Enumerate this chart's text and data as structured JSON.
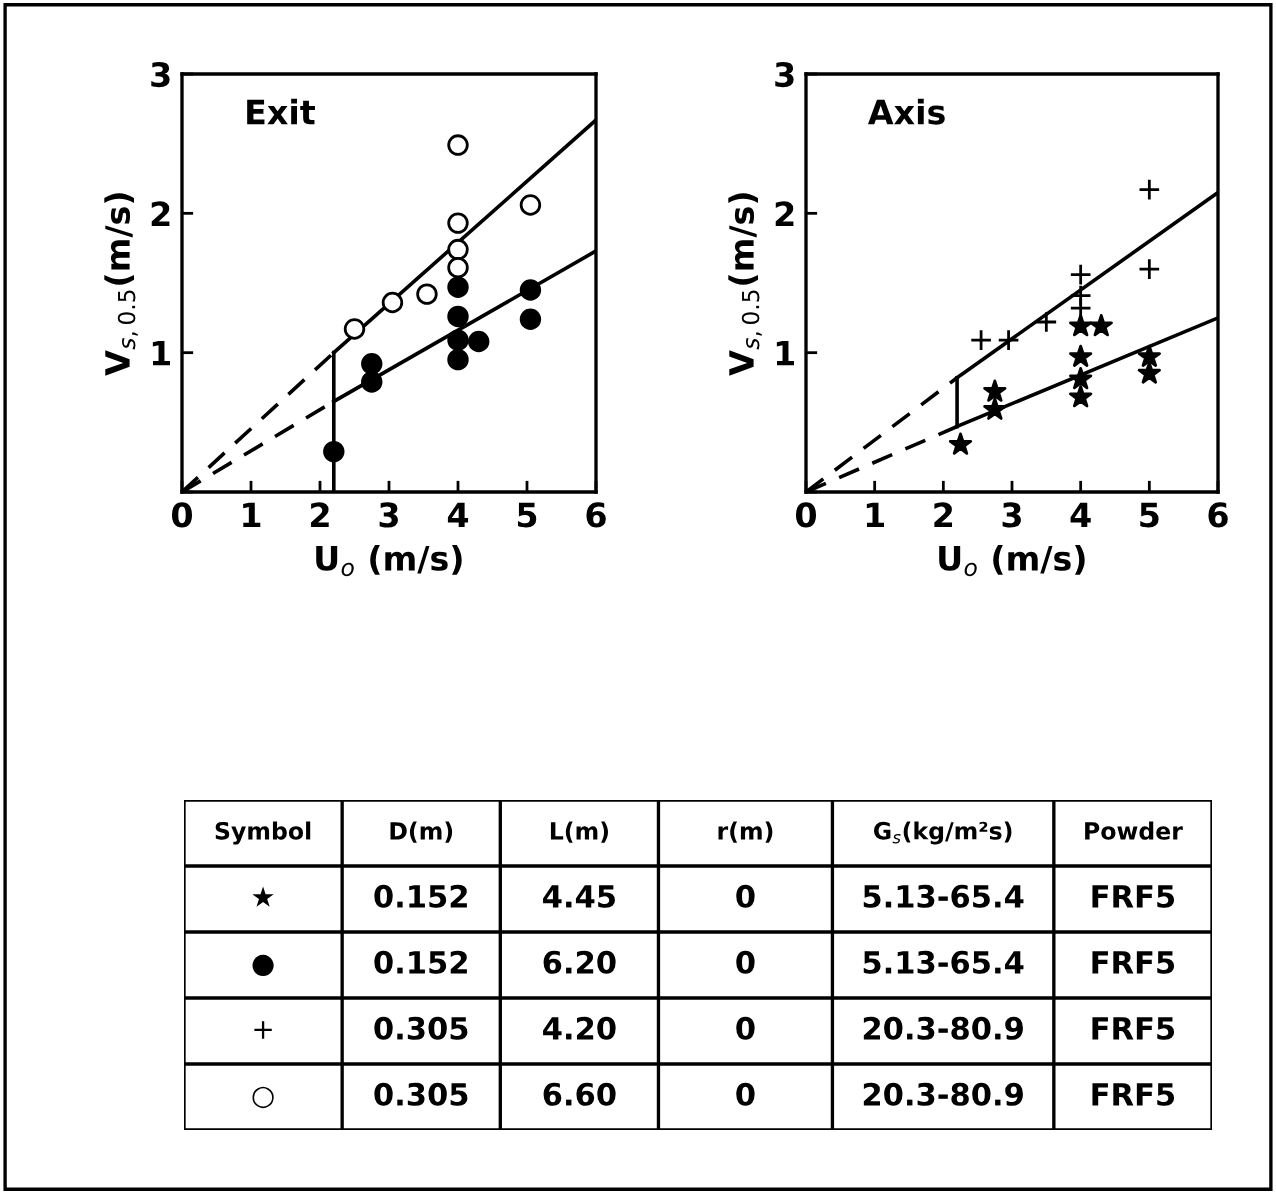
{
  "chart_data": [
    {
      "type": "scatter",
      "title": "Exit",
      "xlabel": "U$_{o}$ (m/s)",
      "ylabel": "V$_{s,0.5}$(m/s)",
      "xlim": [
        0,
        6
      ],
      "ylim": [
        0,
        3
      ],
      "xticks": [
        0,
        1,
        2,
        3,
        4,
        5,
        6
      ],
      "yticks": [
        {
          "value": 0,
          "label": null
        },
        1,
        2,
        3
      ],
      "grid": false,
      "legend": false,
      "series": [
        {
          "type": "scatter",
          "marker": "circle",
          "color": "#ffffff",
          "x": [
            2.5,
            3.05,
            3.55,
            4,
            4,
            4,
            4,
            5.05
          ],
          "values": [
            1.17,
            1.36,
            1.42,
            2.49,
            1.93,
            1.74,
            1.61,
            2.06
          ]
        },
        {
          "type": "scatter",
          "marker": "circle",
          "color": "#000000",
          "x": [
            2.2,
            2.75,
            2.75,
            4,
            4,
            4,
            4,
            4.3,
            5.05,
            5.05
          ],
          "values": [
            0.29,
            0.92,
            0.79,
            1.47,
            1.26,
            1.09,
            0.95,
            1.08,
            1.45,
            1.24
          ]
        },
        {
          "type": "line",
          "line_style": "dashed",
          "color": "#000000",
          "x": [
            0,
            2.2
          ],
          "values": [
            0,
            1.0
          ]
        },
        {
          "type": "line",
          "line_style": "solid",
          "color": "#000000",
          "x": [
            2.2,
            6
          ],
          "values": [
            1.0,
            2.67
          ]
        },
        {
          "type": "line",
          "line_style": "dashed",
          "color": "#000000",
          "x": [
            0,
            2.2
          ],
          "values": [
            0,
            0.65
          ]
        },
        {
          "type": "line",
          "line_style": "solid",
          "color": "#000000",
          "x": [
            2.2,
            6
          ],
          "values": [
            0.65,
            1.73
          ]
        },
        {
          "type": "line",
          "line_style": "solid",
          "color": "#000000",
          "x": [
            2.2,
            2.2
          ],
          "values": [
            0,
            1.0
          ]
        }
      ]
    },
    {
      "type": "scatter",
      "title": "Axis",
      "xlabel": "U$_{o}$ (m/s)",
      "ylabel": "V$_{s,0.5}$(m/s)",
      "xlim": [
        0,
        6
      ],
      "ylim": [
        0,
        3
      ],
      "xticks": [
        0,
        1,
        2,
        3,
        4,
        5,
        6
      ],
      "yticks": [
        {
          "value": 0,
          "label": null
        },
        1,
        2,
        3
      ],
      "grid": false,
      "legend": false,
      "series": [
        {
          "type": "scatter",
          "marker": "cross",
          "color": "#000000",
          "x": [
            2.55,
            2.95,
            3.5,
            4,
            4,
            4,
            5,
            5
          ],
          "values": [
            1.09,
            1.09,
            1.22,
            1.56,
            1.41,
            1.32,
            2.17,
            1.6
          ]
        },
        {
          "type": "scatter",
          "marker": "star",
          "color": "#000000",
          "x": [
            2.25,
            2.75,
            2.75,
            4,
            4,
            4,
            4,
            4.3,
            5,
            5
          ],
          "values": [
            0.34,
            0.72,
            0.59,
            1.19,
            0.97,
            0.81,
            0.68,
            1.19,
            0.97,
            0.85
          ]
        },
        {
          "type": "line",
          "line_style": "dashed",
          "color": "#000000",
          "x": [
            0,
            2.2
          ],
          "values": [
            0,
            0.82
          ]
        },
        {
          "type": "line",
          "line_style": "solid",
          "color": "#000000",
          "x": [
            2.2,
            6
          ],
          "values": [
            0.82,
            2.15
          ]
        },
        {
          "type": "line",
          "line_style": "dashed",
          "color": "#000000",
          "x": [
            0,
            2.2
          ],
          "values": [
            0,
            0.47
          ]
        },
        {
          "type": "line",
          "line_style": "solid",
          "color": "#000000",
          "x": [
            2.2,
            6
          ],
          "values": [
            0.47,
            1.25
          ]
        },
        {
          "type": "line",
          "line_style": "solid",
          "color": "#000000",
          "x": [
            2.2,
            2.2
          ],
          "values": [
            0.47,
            0.82
          ]
        }
      ]
    },
    {
      "type": "other",
      "categories": [
        "Symbol",
        "D(m)",
        "L(m)",
        "r(m)",
        "G$_{s}$(kg/m²s)",
        "Powder"
      ],
      "annotations": [
        "★",
        "0.152",
        "4.45",
        "0",
        "5.13-65.4",
        "FRF5",
        "●",
        "0.152",
        "6.20",
        "0",
        "5.13-65.4",
        "FRF5",
        "+",
        "0.305",
        "4.20",
        "0",
        "20.3-80.9",
        "FRF5",
        "○",
        "0.305",
        "6.60",
        "0",
        "20.3-80.9",
        "FRF5"
      ]
    }
  ]
}
